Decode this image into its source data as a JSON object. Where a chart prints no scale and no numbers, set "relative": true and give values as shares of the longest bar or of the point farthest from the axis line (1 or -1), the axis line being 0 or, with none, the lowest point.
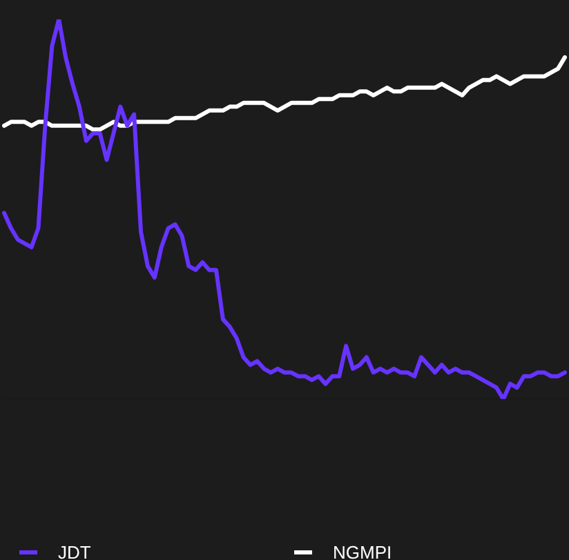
{
  "chart_data": {
    "type": "line",
    "relative": true,
    "legend": "bottom",
    "marker": "none",
    "categories": [
      null,
      null,
      null,
      null,
      null,
      null,
      null,
      null,
      null,
      null,
      null,
      null,
      null,
      null,
      null,
      null,
      null,
      null,
      null,
      null,
      null,
      null,
      null,
      null,
      null,
      null,
      null,
      null,
      null,
      null,
      null,
      null,
      null,
      null,
      null,
      null,
      null,
      null,
      null,
      null,
      null,
      null,
      null,
      null,
      null,
      null,
      null,
      null,
      null,
      null,
      null,
      null,
      null,
      null,
      null,
      null,
      null,
      null,
      null,
      null,
      null,
      null,
      null,
      null,
      null,
      null,
      null,
      null,
      null,
      null,
      null,
      null,
      null,
      null,
      null,
      null,
      null,
      null,
      null,
      null,
      null,
      null,
      null
    ],
    "series": [
      {
        "name": "JDT",
        "color": "#6633ff",
        "values": [
          0.49,
          0.45,
          0.42,
          0.41,
          0.4,
          0.45,
          0.72,
          0.93,
          1.0,
          0.9,
          0.83,
          0.77,
          0.68,
          0.7,
          0.7,
          0.63,
          0.7,
          0.77,
          0.72,
          0.75,
          0.44,
          0.35,
          0.32,
          0.4,
          0.45,
          0.46,
          0.43,
          0.35,
          0.34,
          0.36,
          0.34,
          0.34,
          0.21,
          0.19,
          0.16,
          0.11,
          0.09,
          0.1,
          0.08,
          0.07,
          0.08,
          0.07,
          0.07,
          0.06,
          0.06,
          0.05,
          0.06,
          0.04,
          0.06,
          0.06,
          0.14,
          0.08,
          0.09,
          0.11,
          0.07,
          0.08,
          0.07,
          0.08,
          0.07,
          0.07,
          0.06,
          0.11,
          0.09,
          0.07,
          0.09,
          0.07,
          0.08,
          0.07,
          0.07,
          0.06,
          0.05,
          0.04,
          0.03,
          0.0,
          0.04,
          0.03,
          0.06,
          0.06,
          0.07,
          0.07,
          0.06,
          0.06,
          0.07
        ]
      },
      {
        "name": "NGMPI",
        "color": "#ffffff",
        "values": [
          0.72,
          0.73,
          0.73,
          0.73,
          0.72,
          0.73,
          0.73,
          0.72,
          0.72,
          0.72,
          0.72,
          0.72,
          0.72,
          0.71,
          0.71,
          0.72,
          0.73,
          0.72,
          0.72,
          0.73,
          0.73,
          0.73,
          0.73,
          0.73,
          0.73,
          0.74,
          0.74,
          0.74,
          0.74,
          0.75,
          0.76,
          0.76,
          0.76,
          0.77,
          0.77,
          0.78,
          0.78,
          0.78,
          0.78,
          0.77,
          0.76,
          0.77,
          0.78,
          0.78,
          0.78,
          0.78,
          0.79,
          0.79,
          0.79,
          0.8,
          0.8,
          0.8,
          0.81,
          0.81,
          0.8,
          0.81,
          0.82,
          0.81,
          0.81,
          0.82,
          0.82,
          0.82,
          0.82,
          0.82,
          0.83,
          0.82,
          0.81,
          0.8,
          0.82,
          0.83,
          0.84,
          0.84,
          0.85,
          0.84,
          0.83,
          0.84,
          0.85,
          0.85,
          0.85,
          0.85,
          0.86,
          0.87,
          0.9
        ]
      }
    ]
  }
}
